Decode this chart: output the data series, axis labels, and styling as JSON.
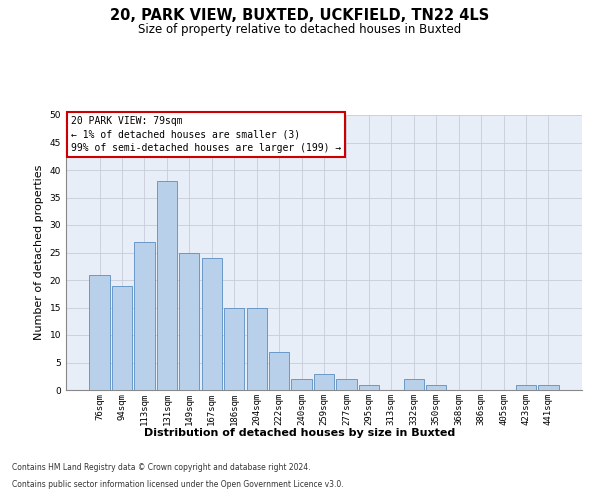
{
  "title_line1": "20, PARK VIEW, BUXTED, UCKFIELD, TN22 4LS",
  "title_line2": "Size of property relative to detached houses in Buxted",
  "xlabel": "Distribution of detached houses by size in Buxted",
  "ylabel": "Number of detached properties",
  "categories": [
    "76sqm",
    "94sqm",
    "113sqm",
    "131sqm",
    "149sqm",
    "167sqm",
    "186sqm",
    "204sqm",
    "222sqm",
    "240sqm",
    "259sqm",
    "277sqm",
    "295sqm",
    "313sqm",
    "332sqm",
    "350sqm",
    "368sqm",
    "386sqm",
    "405sqm",
    "423sqm",
    "441sqm"
  ],
  "values": [
    21,
    19,
    27,
    38,
    25,
    24,
    15,
    15,
    7,
    2,
    3,
    2,
    1,
    0,
    2,
    1,
    0,
    0,
    0,
    1,
    1
  ],
  "bar_color": "#b8d0ea",
  "bar_edge_color": "#5a8fc2",
  "annotation_line1": "20 PARK VIEW: 79sqm",
  "annotation_line2": "← 1% of detached houses are smaller (3)",
  "annotation_line3": "99% of semi-detached houses are larger (199) →",
  "annotation_box_color": "#ffffff",
  "annotation_box_edge": "#cc0000",
  "ylim": [
    0,
    50
  ],
  "yticks": [
    0,
    5,
    10,
    15,
    20,
    25,
    30,
    35,
    40,
    45,
    50
  ],
  "grid_color": "#c8ccd8",
  "bg_color": "#e8eef8",
  "footer_line1": "Contains HM Land Registry data © Crown copyright and database right 2024.",
  "footer_line2": "Contains public sector information licensed under the Open Government Licence v3.0.",
  "title_fontsize": 10.5,
  "subtitle_fontsize": 8.5,
  "tick_fontsize": 6.5,
  "ylabel_fontsize": 8,
  "xlabel_fontsize": 8,
  "annotation_fontsize": 7,
  "footer_fontsize": 5.5
}
